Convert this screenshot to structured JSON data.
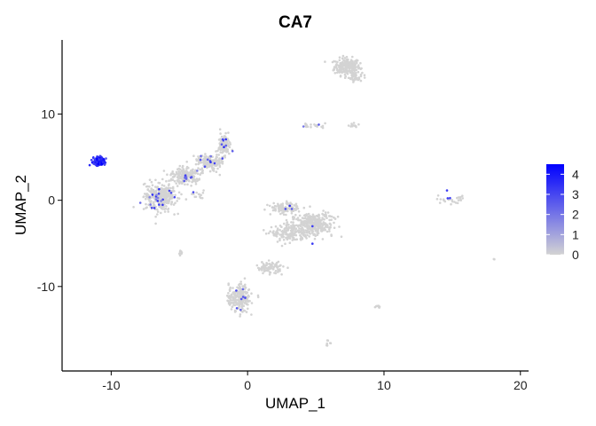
{
  "chart_data": {
    "type": "scatter",
    "title": "CA7",
    "xlabel": "UMAP_1",
    "ylabel": "UMAP_2",
    "xlim": [
      -13.6,
      20.6
    ],
    "ylim": [
      -19.8,
      18.6
    ],
    "x_ticks": [
      -10,
      0,
      10,
      20
    ],
    "y_ticks": [
      -10,
      0,
      10
    ],
    "x_tick_labels": [
      "-10",
      "0",
      "10",
      "20"
    ],
    "y_tick_labels": [
      "-10",
      "0",
      "10"
    ],
    "grid": false,
    "legend": {
      "placement": "right",
      "type": "colorbar",
      "min": 0,
      "max": 4.5,
      "ticks": [
        0,
        1,
        2,
        3,
        4
      ],
      "tick_labels": [
        "0",
        "1",
        "2",
        "3",
        "4"
      ],
      "low_color": "#d3d3d3",
      "high_color": "#0000ff"
    },
    "clusters": [
      {
        "cx": 7.3,
        "cy": 15.5,
        "sx": 0.85,
        "sy": 0.9,
        "n": 220,
        "expr": 0
      },
      {
        "cx": 7.9,
        "cy": 14.3,
        "sx": 0.45,
        "sy": 0.5,
        "n": 40,
        "expr": 0
      },
      {
        "cx": -6.4,
        "cy": 0.4,
        "sx": 1.05,
        "sy": 1.4,
        "n": 320,
        "expr": 0.05
      },
      {
        "cx": -4.6,
        "cy": 2.8,
        "sx": 1.0,
        "sy": 0.9,
        "n": 200,
        "expr": 0.05
      },
      {
        "cx": -2.8,
        "cy": 4.4,
        "sx": 0.8,
        "sy": 0.8,
        "n": 160,
        "expr": 0.05
      },
      {
        "cx": -1.7,
        "cy": 6.4,
        "sx": 0.45,
        "sy": 1.0,
        "n": 120,
        "expr": 0.05
      },
      {
        "cx": 2.7,
        "cy": -0.9,
        "sx": 1.0,
        "sy": 0.55,
        "n": 110,
        "expr": 0.02
      },
      {
        "cx": 4.7,
        "cy": -2.8,
        "sx": 1.4,
        "sy": 1.2,
        "n": 350,
        "expr": 0.01
      },
      {
        "cx": 3.0,
        "cy": -3.9,
        "sx": 1.1,
        "sy": 0.9,
        "n": 140,
        "expr": 0
      },
      {
        "cx": 1.6,
        "cy": -7.8,
        "sx": 0.9,
        "sy": 0.6,
        "n": 90,
        "expr": 0
      },
      {
        "cx": -0.6,
        "cy": -11.3,
        "sx": 0.7,
        "sy": 1.4,
        "n": 220,
        "expr": 0.02
      },
      {
        "cx": -10.9,
        "cy": 4.5,
        "sx": 0.4,
        "sy": 0.45,
        "n": 150,
        "expr": 0.85
      },
      {
        "cx": 4.8,
        "cy": 8.6,
        "sx": 1.1,
        "sy": 0.25,
        "n": 22,
        "expr": 0.05
      },
      {
        "cx": 7.6,
        "cy": 8.7,
        "sx": 0.4,
        "sy": 0.2,
        "n": 12,
        "expr": 0.05
      },
      {
        "cx": 14.9,
        "cy": 0.1,
        "sx": 0.9,
        "sy": 0.5,
        "n": 28,
        "expr": 0.05
      },
      {
        "cx": -4.9,
        "cy": -6.0,
        "sx": 0.12,
        "sy": 0.3,
        "n": 8,
        "expr": 0
      },
      {
        "cx": 9.6,
        "cy": -12.4,
        "sx": 0.35,
        "sy": 0.2,
        "n": 8,
        "expr": 0
      },
      {
        "cx": 5.9,
        "cy": -16.6,
        "sx": 0.2,
        "sy": 0.25,
        "n": 8,
        "expr": 0
      },
      {
        "cx": 18.1,
        "cy": -6.8,
        "sx": 0.1,
        "sy": 0.1,
        "n": 2,
        "expr": 0
      },
      {
        "cx": -3.5,
        "cy": 0.6,
        "sx": 0.6,
        "sy": 0.5,
        "n": 14,
        "expr": 0.05
      }
    ]
  }
}
